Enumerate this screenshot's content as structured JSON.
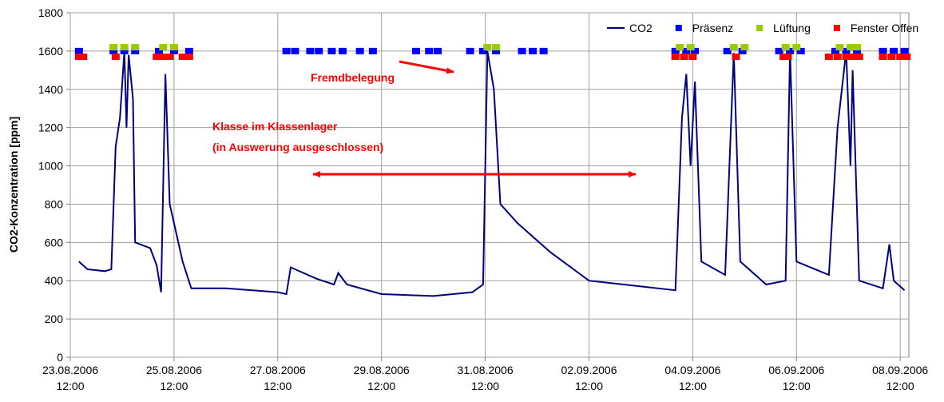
{
  "chart_data": {
    "type": "line",
    "ylabel": "CO2-Konzentration [ppm]",
    "ylim": [
      0,
      1800
    ],
    "yticks": [
      0,
      200,
      400,
      600,
      800,
      1000,
      1200,
      1400,
      1600,
      1800
    ],
    "xlim": [
      "2006-08-23 12:00",
      "2006-09-08 16:00"
    ],
    "xticks": [
      {
        "value": "2006-08-23 12:00",
        "label": "23.08.2006 12:00"
      },
      {
        "value": "2006-08-25 12:00",
        "label": "25.08.2006 12:00"
      },
      {
        "value": "2006-08-27 12:00",
        "label": "27.08.2006 12:00"
      },
      {
        "value": "2006-08-29 12:00",
        "label": "29.08.2006 12:00"
      },
      {
        "value": "2006-08-31 12:00",
        "label": "31.08.2006 12:00"
      },
      {
        "value": "2006-09-02 12:00",
        "label": "02.09.2006 12:00"
      },
      {
        "value": "2006-09-04 12:00",
        "label": "04.09.2006 12:00"
      },
      {
        "value": "2006-09-06 12:00",
        "label": "06.09.2006 12:00"
      },
      {
        "value": "2006-09-08 12:00",
        "label": "08.09.2006 12:00"
      }
    ],
    "grid": true,
    "legend": "top-right",
    "annotations": [
      "Fremdbelegung",
      "Klasse im Klassenlager",
      "(in Auswerung ausgeschlossen)"
    ],
    "series": [
      {
        "name": "CO2",
        "color": "#000080",
        "style": "line",
        "x": [
          "2006-08-23 16:00",
          "2006-08-23 20:00",
          "2006-08-24 04:00",
          "2006-08-24 07:00",
          "2006-08-24 09:00",
          "2006-08-24 11:00",
          "2006-08-24 13:00",
          "2006-08-24 14:00",
          "2006-08-24 15:00",
          "2006-08-24 17:00",
          "2006-08-24 18:00",
          "2006-08-25 01:00",
          "2006-08-25 04:00",
          "2006-08-25 06:00",
          "2006-08-25 08:00",
          "2006-08-25 10:00",
          "2006-08-25 16:00",
          "2006-08-25 20:00",
          "2006-08-26 12:00",
          "2006-08-27 12:00",
          "2006-08-27 16:00",
          "2006-08-27 18:00",
          "2006-08-28 06:00",
          "2006-08-28 14:00",
          "2006-08-28 16:00",
          "2006-08-28 20:00",
          "2006-08-29 12:00",
          "2006-08-30 12:00",
          "2006-08-31 06:00",
          "2006-08-31 11:00",
          "2006-08-31 13:00",
          "2006-08-31 16:00",
          "2006-08-31 19:00",
          "2006-09-01 03:00",
          "2006-09-01 18:00",
          "2006-09-02 12:00",
          "2006-09-03 12:00",
          "2006-09-04 04:00",
          "2006-09-04 07:00",
          "2006-09-04 09:00",
          "2006-09-04 11:00",
          "2006-09-04 13:00",
          "2006-09-04 16:00",
          "2006-09-05 03:00",
          "2006-09-05 07:00",
          "2006-09-05 10:00",
          "2006-09-05 22:00",
          "2006-09-06 07:00",
          "2006-09-06 09:00",
          "2006-09-06 12:00",
          "2006-09-07 03:00",
          "2006-09-07 07:00",
          "2006-09-07 11:00",
          "2006-09-07 13:00",
          "2006-09-07 14:00",
          "2006-09-07 17:00",
          "2006-09-08 04:00",
          "2006-09-08 07:00",
          "2006-09-08 09:00",
          "2006-09-08 14:00"
        ],
        "values": [
          500,
          460,
          450,
          460,
          1100,
          1250,
          1600,
          1200,
          1580,
          1350,
          600,
          570,
          480,
          340,
          1480,
          800,
          500,
          360,
          360,
          340,
          330,
          470,
          410,
          380,
          440,
          380,
          330,
          320,
          340,
          380,
          1600,
          1400,
          800,
          700,
          550,
          400,
          370,
          350,
          1250,
          1480,
          1000,
          1440,
          500,
          430,
          1590,
          500,
          380,
          400,
          1600,
          500,
          430,
          1200,
          1600,
          1000,
          1500,
          400,
          360,
          590,
          400,
          350
        ]
      },
      {
        "name": "Präsenz",
        "color": "#0000ff",
        "style": "square",
        "x": [
          "2006-08-23 16:00",
          "2006-08-24 08:00",
          "2006-08-24 13:00",
          "2006-08-24 18:00",
          "2006-08-25 05:00",
          "2006-08-25 12:00",
          "2006-08-25 19:00",
          "2006-08-27 16:00",
          "2006-08-27 20:00",
          "2006-08-28 03:00",
          "2006-08-28 07:00",
          "2006-08-28 13:00",
          "2006-08-28 18:00",
          "2006-08-29 02:00",
          "2006-08-29 08:00",
          "2006-08-30 04:00",
          "2006-08-30 10:00",
          "2006-08-30 14:00",
          "2006-08-31 05:00",
          "2006-08-31 11:00",
          "2006-08-31 17:00",
          "2006-09-01 05:00",
          "2006-09-01 10:00",
          "2006-09-01 15:00",
          "2006-09-04 04:00",
          "2006-09-04 09:00",
          "2006-09-04 13:00",
          "2006-09-05 04:00",
          "2006-09-05 11:00",
          "2006-09-06 04:00",
          "2006-09-06 09:00",
          "2006-09-06 14:00",
          "2006-09-07 06:00",
          "2006-09-07 11:00",
          "2006-09-07 16:00",
          "2006-09-08 04:00",
          "2006-09-08 09:00",
          "2006-09-08 14:00"
        ],
        "values": [
          1600,
          1600,
          1600,
          1600,
          1600,
          1600,
          1600,
          1600,
          1600,
          1600,
          1600,
          1600,
          1600,
          1600,
          1600,
          1600,
          1600,
          1600,
          1600,
          1600,
          1600,
          1600,
          1600,
          1600,
          1600,
          1600,
          1600,
          1600,
          1600,
          1600,
          1600,
          1600,
          1600,
          1600,
          1600,
          1600,
          1600,
          1600
        ]
      },
      {
        "name": "Lüftung",
        "color": "#99cc00",
        "style": "square",
        "x": [
          "2006-08-24 08:00",
          "2006-08-24 13:00",
          "2006-08-24 18:00",
          "2006-08-25 07:00",
          "2006-08-25 12:00",
          "2006-08-31 13:00",
          "2006-08-31 17:00",
          "2006-09-04 06:00",
          "2006-09-04 11:00",
          "2006-09-05 07:00",
          "2006-09-05 12:00",
          "2006-09-06 07:00",
          "2006-09-06 12:00",
          "2006-09-07 08:00",
          "2006-09-07 13:00",
          "2006-09-07 16:00"
        ],
        "values": [
          1620,
          1620,
          1620,
          1620,
          1620,
          1620,
          1620,
          1620,
          1620,
          1620,
          1620,
          1620,
          1620,
          1620,
          1620,
          1620
        ]
      },
      {
        "name": "Fenster Offen",
        "color": "#ff0000",
        "style": "square",
        "x": [
          "2006-08-23 16:00",
          "2006-08-23 18:00",
          "2006-08-24 09:00",
          "2006-08-25 04:00",
          "2006-08-25 07:00",
          "2006-08-25 10:00",
          "2006-08-25 16:00",
          "2006-08-25 19:00",
          "2006-09-04 04:00",
          "2006-09-04 08:00",
          "2006-09-04 12:00",
          "2006-09-05 08:00",
          "2006-09-06 06:00",
          "2006-09-06 08:00",
          "2006-09-07 03:00",
          "2006-09-07 07:00",
          "2006-09-07 11:00",
          "2006-09-07 14:00",
          "2006-09-07 17:00",
          "2006-09-08 04:00",
          "2006-09-08 08:00",
          "2006-09-08 12:00",
          "2006-09-08 15:00"
        ],
        "values": [
          1570,
          1570,
          1570,
          1570,
          1570,
          1570,
          1570,
          1570,
          1570,
          1570,
          1570,
          1570,
          1570,
          1570,
          1570,
          1570,
          1570,
          1570,
          1570,
          1570,
          1570,
          1570,
          1570
        ]
      }
    ]
  }
}
